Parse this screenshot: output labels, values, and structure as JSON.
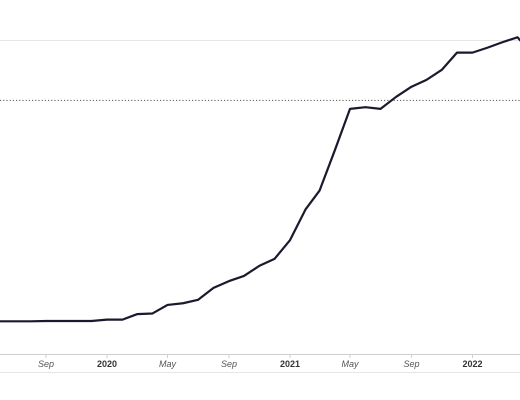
{
  "chart_data": {
    "type": "line",
    "title": "",
    "xlabel": "",
    "ylabel": "",
    "x_ticks": [
      {
        "date": "2019-09",
        "label": "Sep",
        "kind": "month"
      },
      {
        "date": "2020-01",
        "label": "2020",
        "kind": "year"
      },
      {
        "date": "2020-05",
        "label": "May",
        "kind": "month"
      },
      {
        "date": "2020-09",
        "label": "Sep",
        "kind": "month"
      },
      {
        "date": "2021-01",
        "label": "2021",
        "kind": "year"
      },
      {
        "date": "2021-05",
        "label": "May",
        "kind": "month"
      },
      {
        "date": "2021-09",
        "label": "Sep",
        "kind": "month"
      },
      {
        "date": "2022-01",
        "label": "2022",
        "kind": "year"
      }
    ],
    "xlim": [
      "2019-06-01",
      "2022-06-01"
    ],
    "ylim": [
      0,
      100
    ],
    "grid": true,
    "reference_line": {
      "value": 74.5,
      "style": "dotted"
    },
    "series": [
      {
        "name": "",
        "color": "#1a1a2e",
        "points": [
          {
            "x": "2019-06-01",
            "y": 9.7
          },
          {
            "x": "2019-07-01",
            "y": 9.7
          },
          {
            "x": "2019-08-01",
            "y": 9.7
          },
          {
            "x": "2019-09-01",
            "y": 9.8
          },
          {
            "x": "2019-10-01",
            "y": 9.8
          },
          {
            "x": "2019-11-01",
            "y": 9.8
          },
          {
            "x": "2019-12-01",
            "y": 9.8
          },
          {
            "x": "2020-01-01",
            "y": 10.2
          },
          {
            "x": "2020-02-01",
            "y": 10.2
          },
          {
            "x": "2020-03-01",
            "y": 11.8
          },
          {
            "x": "2020-04-01",
            "y": 12.0
          },
          {
            "x": "2020-05-01",
            "y": 14.5
          },
          {
            "x": "2020-06-01",
            "y": 15.0
          },
          {
            "x": "2020-07-01",
            "y": 16.0
          },
          {
            "x": "2020-08-01",
            "y": 19.5
          },
          {
            "x": "2020-09-01",
            "y": 21.5
          },
          {
            "x": "2020-10-01",
            "y": 23.0
          },
          {
            "x": "2020-11-01",
            "y": 26.0
          },
          {
            "x": "2020-12-01",
            "y": 28.0
          },
          {
            "x": "2021-01-01",
            "y": 33.5
          },
          {
            "x": "2021-02-01",
            "y": 42.5
          },
          {
            "x": "2021-03-01",
            "y": 48.0
          },
          {
            "x": "2021-04-01",
            "y": 60.0
          },
          {
            "x": "2021-05-01",
            "y": 72.0
          },
          {
            "x": "2021-06-01",
            "y": 72.5
          },
          {
            "x": "2021-07-01",
            "y": 72.0
          },
          {
            "x": "2021-08-01",
            "y": 75.5
          },
          {
            "x": "2021-09-01",
            "y": 78.5
          },
          {
            "x": "2021-10-01",
            "y": 80.5
          },
          {
            "x": "2021-11-01",
            "y": 83.5
          },
          {
            "x": "2021-12-01",
            "y": 88.5
          },
          {
            "x": "2022-01-01",
            "y": 88.5
          },
          {
            "x": "2022-02-01",
            "y": 90.0
          },
          {
            "x": "2022-03-01",
            "y": 91.5
          },
          {
            "x": "2022-04-01",
            "y": 93.0
          },
          {
            "x": "2022-05-01",
            "y": 88.0
          }
        ]
      }
    ]
  }
}
